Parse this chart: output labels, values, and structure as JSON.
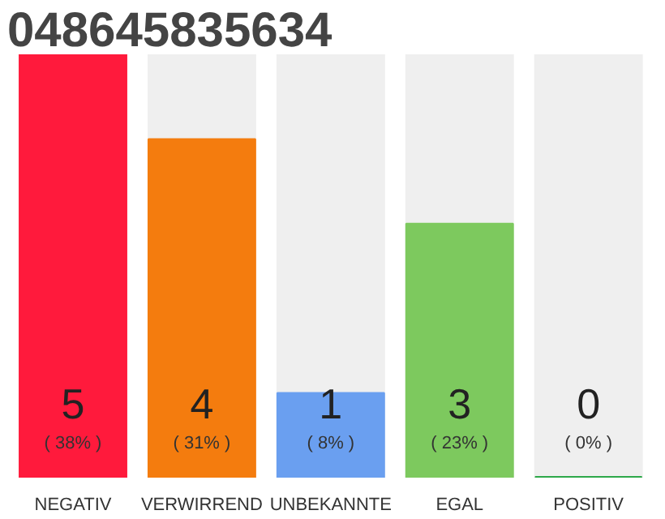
{
  "chart_data": {
    "type": "bar",
    "title": "048645835634",
    "categories": [
      "NEGATIV",
      "VERWIRREND",
      "UNBEKANNTE",
      "EGAL",
      "POSITIV"
    ],
    "values": [
      5,
      4,
      1,
      3,
      0
    ],
    "colors": [
      "#ff1a3c",
      "#f47c0e",
      "#6a9ff0",
      "#7dc95e",
      "#2ea84a"
    ],
    "ylim": [
      0,
      5
    ],
    "data_labels": true,
    "grid": false,
    "tick_labels": "x",
    "annotations": [
      "( 38% )",
      "( 31% )",
      "( 8% )",
      "( 23% )",
      "( 0% )"
    ]
  }
}
